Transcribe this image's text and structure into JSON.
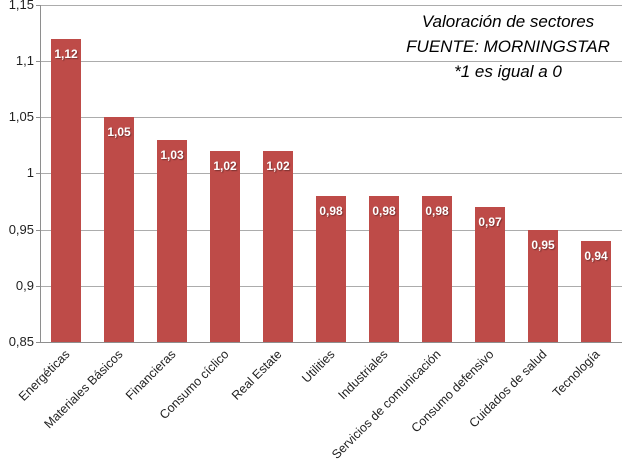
{
  "chart_data": {
    "type": "bar",
    "title": "Valoración de sectores",
    "title_lines": [
      "Valoración de sectores",
      "FUENTE: MORNINGSTAR",
      "*1 es igual a 0"
    ],
    "categories": [
      "Energéticas",
      "Materiales Básicos",
      "Financieras",
      "Consumo cíclico",
      "Real Estate",
      "Utilities",
      "Industriales",
      "Servicios de comunicación",
      "Consumo defensivo",
      "Cuidados de salud",
      "Tecnología"
    ],
    "values": [
      1.12,
      1.05,
      1.03,
      1.02,
      1.02,
      0.98,
      0.98,
      0.98,
      0.97,
      0.95,
      0.94
    ],
    "value_labels": [
      "1,12",
      "1,05",
      "1,03",
      "1,02",
      "1,02",
      "0,98",
      "0,98",
      "0,98",
      "0,97",
      "0,95",
      "0,94"
    ],
    "xlabel": "",
    "ylabel": "",
    "ylim": [
      0.85,
      1.15
    ],
    "y_tick_values": [
      1.15,
      1.1,
      1.05,
      1.0,
      0.95,
      0.9,
      0.85
    ],
    "y_tick_labels": [
      "1,15",
      "1,1",
      "1,05",
      "1",
      "0,95",
      "0,9",
      "0,85"
    ],
    "grid": true,
    "legend_position": "none",
    "colors": {
      "bar": "#BE4B48",
      "bar_label_text": "#FFFFFF",
      "gridline": "#ACACAC",
      "axis_line": "#8E8E8E",
      "tick_text": "#1F1F1F",
      "title_text": "#000000",
      "background": "#FFFFFF"
    }
  }
}
